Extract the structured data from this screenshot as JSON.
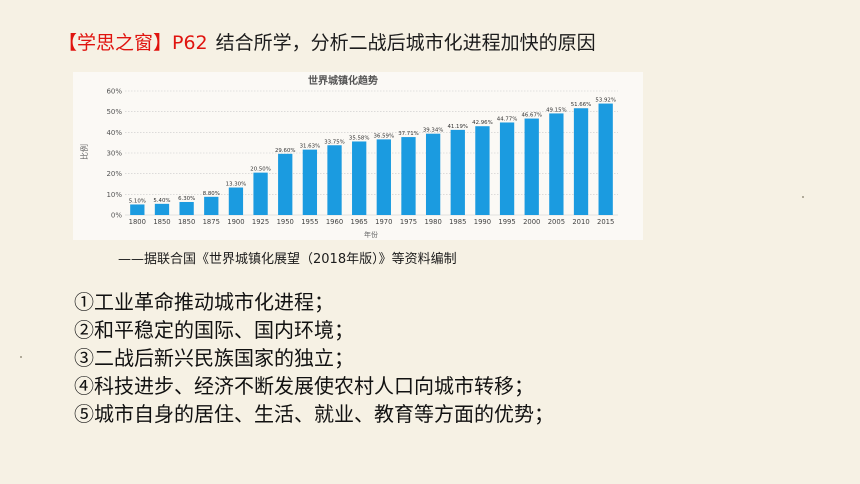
{
  "header": {
    "tag": "【学思之窗】",
    "page_ref": "P62",
    "task": "结合所学，分析二战后城市化进程加快的原因"
  },
  "chart_data": {
    "type": "bar",
    "title": "世界城镇化趋势",
    "xlabel": "年份",
    "ylabel": "比例",
    "ylim": [
      0,
      60
    ],
    "yticks": [
      "0%",
      "10%",
      "20%",
      "30%",
      "40%",
      "50%",
      "60%"
    ],
    "grid": "horizontal dotted",
    "bar_color": "#1b9be0",
    "categories": [
      "1800",
      "1850",
      "1850",
      "1875",
      "1900",
      "1925",
      "1950",
      "1955",
      "1960",
      "1965",
      "1970",
      "1975",
      "1980",
      "1985",
      "1990",
      "1995",
      "2000",
      "2005",
      "2010",
      "2015"
    ],
    "values": [
      5.1,
      5.4,
      6.3,
      8.8,
      13.3,
      20.5,
      29.6,
      31.63,
      33.75,
      35.58,
      36.59,
      37.71,
      39.34,
      41.19,
      42.96,
      44.77,
      46.67,
      49.15,
      51.66,
      53.92
    ],
    "data_labels": [
      "5.10%",
      "5.40%",
      "6.30%",
      "8.80%",
      "13.30%",
      "20.50%",
      "29.60%",
      "31.63%",
      "33.75%",
      "35.58%",
      "36.59%",
      "37.71%",
      "39.34%",
      "41.19%",
      "42.96%",
      "44.77%",
      "46.67%",
      "49.15%",
      "51.66%",
      "53.92%"
    ]
  },
  "source_note": "——据联合国《世界城镇化展望（2018年版）》等资料编制",
  "reasons": [
    "①工业革命推动城市化进程；",
    "②和平稳定的国际、国内环境；",
    "③二战后新兴民族国家的独立；",
    "④科技进步、经济不断发展使农村人口向城市转移；",
    "⑤城市自身的居住、生活、就业、教育等方面的优势；"
  ]
}
